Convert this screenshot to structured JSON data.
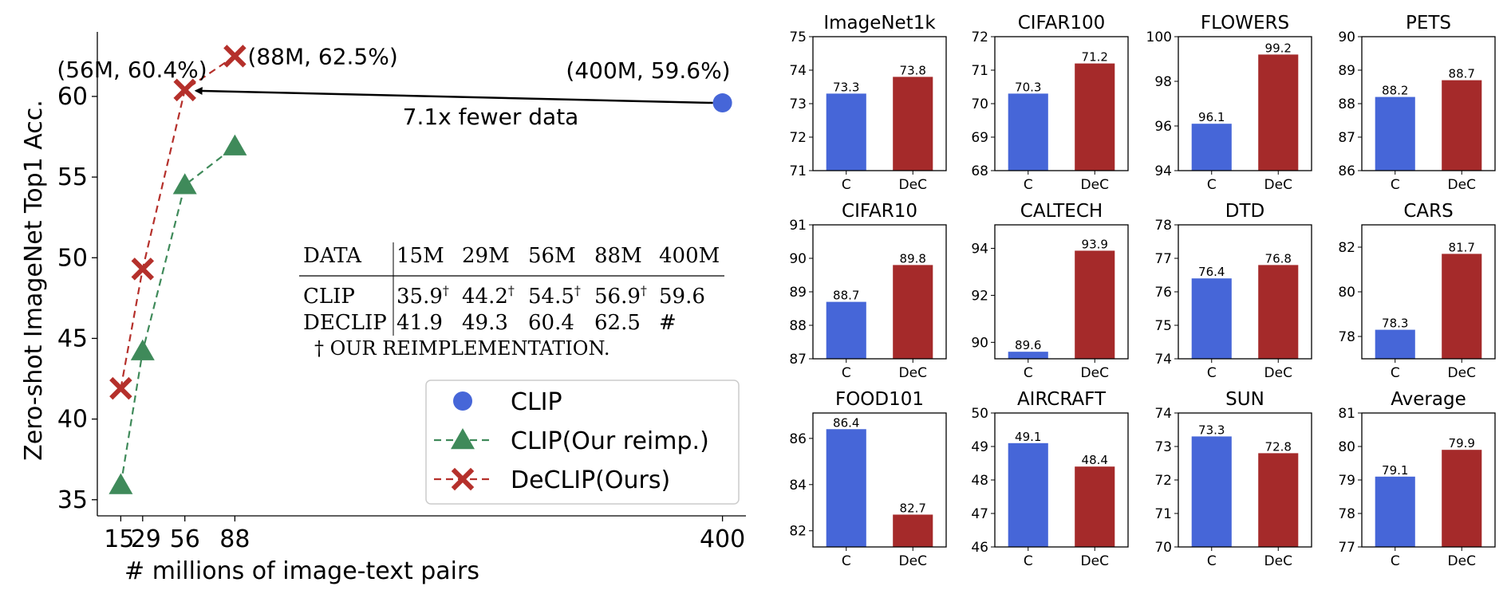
{
  "chart_data": [
    {
      "type": "line",
      "xlabel": "# millions of image-text pairs",
      "ylabel": "Zero-shot ImageNet Top1 Acc.",
      "xlim": [
        0,
        415
      ],
      "ylim": [
        34,
        64
      ],
      "xticks": [
        15,
        29,
        56,
        88,
        400
      ],
      "yticks": [
        35,
        40,
        45,
        50,
        55,
        60
      ],
      "grid": false,
      "legend_position": "bottom-right",
      "series": [
        {
          "name": "CLIP",
          "style": "circle",
          "color": "#4666d8",
          "x": [
            400
          ],
          "y": [
            59.6
          ]
        },
        {
          "name": "CLIP(Our reimp.)",
          "style": "dashed-triangle",
          "color": "#3f8a5a",
          "x": [
            15,
            29,
            56,
            88
          ],
          "y": [
            35.9,
            44.2,
            54.5,
            56.9
          ]
        },
        {
          "name": "DeCLIP(Ours)",
          "style": "dashed-x",
          "color": "#b5302b",
          "x": [
            15,
            29,
            56,
            88
          ],
          "y": [
            41.9,
            49.3,
            60.4,
            62.5
          ]
        }
      ],
      "annotations": [
        {
          "text": "(56M, 60.4%)",
          "x": 56,
          "y": 60.4,
          "color": "#b5302b"
        },
        {
          "text": "(88M, 62.5%)",
          "x": 88,
          "y": 62.5,
          "color": "#b5302b"
        },
        {
          "text": "(400M, 59.6%)",
          "x": 400,
          "y": 59.6,
          "color": "#4666d8"
        },
        {
          "text": "7.1x fewer data",
          "arrow_from": [
            400,
            59.6
          ],
          "arrow_to": [
            56,
            60.4
          ]
        }
      ],
      "inset_table": {
        "header": [
          "DATA",
          "15M",
          "29M",
          "56M",
          "88M",
          "400M"
        ],
        "rows": [
          [
            "CLIP",
            "35.9†",
            "44.2†",
            "54.5†",
            "56.9†",
            "59.6"
          ],
          [
            "DECLIP",
            "41.9",
            "49.3",
            "60.4",
            "62.5",
            "#"
          ]
        ],
        "footnote": "† OUR REIMPLEMENTATION."
      }
    },
    {
      "type": "bar",
      "title": "ImageNet1k",
      "categories": [
        "C",
        "DeC"
      ],
      "values": [
        73.3,
        73.8
      ],
      "ylim": [
        71,
        75
      ],
      "yticks": [
        71,
        72,
        73,
        74,
        75
      ],
      "colors": [
        "#4666d8",
        "#a52a2a"
      ]
    },
    {
      "type": "bar",
      "title": "CIFAR100",
      "categories": [
        "C",
        "DeC"
      ],
      "values": [
        70.3,
        71.2
      ],
      "ylim": [
        68,
        72
      ],
      "yticks": [
        68,
        69,
        70,
        71,
        72
      ],
      "colors": [
        "#4666d8",
        "#a52a2a"
      ]
    },
    {
      "type": "bar",
      "title": "FLOWERS",
      "categories": [
        "C",
        "DeC"
      ],
      "values": [
        96.1,
        99.2
      ],
      "ylim": [
        94,
        100
      ],
      "yticks": [
        94,
        96,
        98,
        100
      ],
      "colors": [
        "#4666d8",
        "#a52a2a"
      ]
    },
    {
      "type": "bar",
      "title": "PETS",
      "categories": [
        "C",
        "DeC"
      ],
      "values": [
        88.2,
        88.7
      ],
      "ylim": [
        86,
        90
      ],
      "yticks": [
        86,
        87,
        88,
        89,
        90
      ],
      "colors": [
        "#4666d8",
        "#a52a2a"
      ]
    },
    {
      "type": "bar",
      "title": "CIFAR10",
      "categories": [
        "C",
        "DeC"
      ],
      "values": [
        88.7,
        89.8
      ],
      "ylim": [
        87,
        91
      ],
      "yticks": [
        87,
        88,
        89,
        90,
        91
      ],
      "colors": [
        "#4666d8",
        "#a52a2a"
      ]
    },
    {
      "type": "bar",
      "title": "CALTECH",
      "categories": [
        "C",
        "DeC"
      ],
      "values": [
        89.6,
        93.9
      ],
      "ylim": [
        89.3,
        95
      ],
      "yticks": [
        90,
        92,
        94
      ],
      "colors": [
        "#4666d8",
        "#a52a2a"
      ]
    },
    {
      "type": "bar",
      "title": "DTD",
      "categories": [
        "C",
        "DeC"
      ],
      "values": [
        76.4,
        76.8
      ],
      "ylim": [
        74,
        78
      ],
      "yticks": [
        74,
        75,
        76,
        77,
        78
      ],
      "colors": [
        "#4666d8",
        "#a52a2a"
      ]
    },
    {
      "type": "bar",
      "title": "CARS",
      "categories": [
        "C",
        "DeC"
      ],
      "values": [
        78.3,
        81.7
      ],
      "ylim": [
        77,
        83
      ],
      "yticks": [
        78,
        80,
        82
      ],
      "colors": [
        "#4666d8",
        "#a52a2a"
      ]
    },
    {
      "type": "bar",
      "title": "FOOD101",
      "categories": [
        "C",
        "DeC"
      ],
      "values": [
        86.4,
        82.7
      ],
      "ylim": [
        81.3,
        87.1
      ],
      "yticks": [
        82,
        84,
        86
      ],
      "colors": [
        "#4666d8",
        "#a52a2a"
      ]
    },
    {
      "type": "bar",
      "title": "AIRCRAFT",
      "categories": [
        "C",
        "DeC"
      ],
      "values": [
        49.1,
        48.4
      ],
      "ylim": [
        46,
        50
      ],
      "yticks": [
        46,
        47,
        48,
        49,
        50
      ],
      "colors": [
        "#4666d8",
        "#a52a2a"
      ]
    },
    {
      "type": "bar",
      "title": "SUN",
      "categories": [
        "C",
        "DeC"
      ],
      "values": [
        73.3,
        72.8
      ],
      "ylim": [
        70,
        74
      ],
      "yticks": [
        70,
        71,
        72,
        73,
        74
      ],
      "colors": [
        "#4666d8",
        "#a52a2a"
      ]
    },
    {
      "type": "bar",
      "title": "Average",
      "categories": [
        "C",
        "DeC"
      ],
      "values": [
        79.1,
        79.9
      ],
      "ylim": [
        77,
        81
      ],
      "yticks": [
        77,
        78,
        79,
        80,
        81
      ],
      "colors": [
        "#4666d8",
        "#a52a2a"
      ]
    }
  ]
}
